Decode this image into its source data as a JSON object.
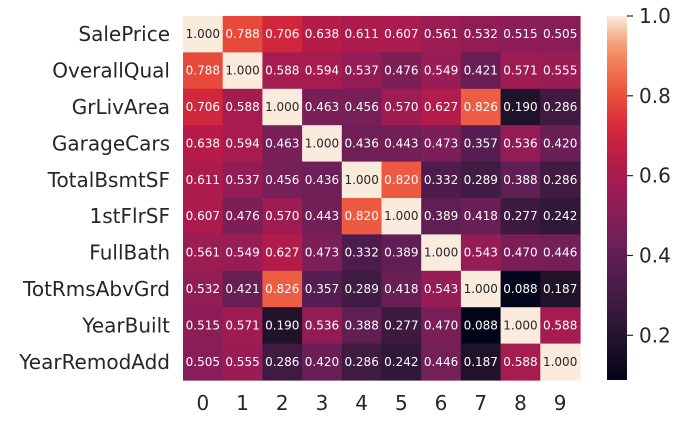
{
  "chart_data": {
    "type": "heatmap",
    "row_labels": [
      "SalePrice",
      "OverallQual",
      "GrLivArea",
      "GarageCars",
      "TotalBsmtSF",
      "1stFlrSF",
      "FullBath",
      "TotRmsAbvGrd",
      "YearBuilt",
      "YearRemodAdd"
    ],
    "col_labels": [
      "0",
      "1",
      "2",
      "3",
      "4",
      "5",
      "6",
      "7",
      "8",
      "9"
    ],
    "values": [
      [
        "1.000",
        "0.788",
        "0.706",
        "0.638",
        "0.611",
        "0.607",
        "0.561",
        "0.532",
        "0.515",
        "0.505"
      ],
      [
        "0.788",
        "1.000",
        "0.588",
        "0.594",
        "0.537",
        "0.476",
        "0.549",
        "0.421",
        "0.571",
        "0.555"
      ],
      [
        "0.706",
        "0.588",
        "1.000",
        "0.463",
        "0.456",
        "0.570",
        "0.627",
        "0.826",
        "0.190",
        "0.286"
      ],
      [
        "0.638",
        "0.594",
        "0.463",
        "1.000",
        "0.436",
        "0.443",
        "0.473",
        "0.357",
        "0.536",
        "0.420"
      ],
      [
        "0.611",
        "0.537",
        "0.456",
        "0.436",
        "1.000",
        "0.820",
        "0.332",
        "0.289",
        "0.388",
        "0.286"
      ],
      [
        "0.607",
        "0.476",
        "0.570",
        "0.443",
        "0.820",
        "1.000",
        "0.389",
        "0.418",
        "0.277",
        "0.242"
      ],
      [
        "0.561",
        "0.549",
        "0.627",
        "0.473",
        "0.332",
        "0.389",
        "1.000",
        "0.543",
        "0.470",
        "0.446"
      ],
      [
        "0.532",
        "0.421",
        "0.826",
        "0.357",
        "0.289",
        "0.418",
        "0.543",
        "1.000",
        "0.088",
        "0.187"
      ],
      [
        "0.515",
        "0.571",
        "0.190",
        "0.536",
        "0.388",
        "0.277",
        "0.470",
        "0.088",
        "1.000",
        "0.588"
      ],
      [
        "0.505",
        "0.555",
        "0.286",
        "0.420",
        "0.286",
        "0.242",
        "0.446",
        "0.187",
        "0.588",
        "1.000"
      ]
    ],
    "vmin": 0.088,
    "vmax": 1.0,
    "colorbar": {
      "ticks": [
        0.2,
        0.4,
        0.6,
        0.8,
        1.0
      ],
      "tick_labels": [
        "0.2",
        "0.4",
        "0.6",
        "0.8",
        "1.0"
      ]
    },
    "colormap": "rocket",
    "colormap_stops": [
      [
        0.0,
        "#03051a"
      ],
      [
        0.1,
        "#1e1129"
      ],
      [
        0.2,
        "#3a1a3f"
      ],
      [
        0.3,
        "#561d52"
      ],
      [
        0.4,
        "#751f58"
      ],
      [
        0.5,
        "#961c56"
      ],
      [
        0.6,
        "#b51b49"
      ],
      [
        0.7,
        "#d82a3a"
      ],
      [
        0.78,
        "#ea4f3b"
      ],
      [
        0.86,
        "#f37651"
      ],
      [
        0.92,
        "#f59c77"
      ],
      [
        0.96,
        "#f7c3a5"
      ],
      [
        1.0,
        "#faebdd"
      ]
    ],
    "grid": false
  }
}
